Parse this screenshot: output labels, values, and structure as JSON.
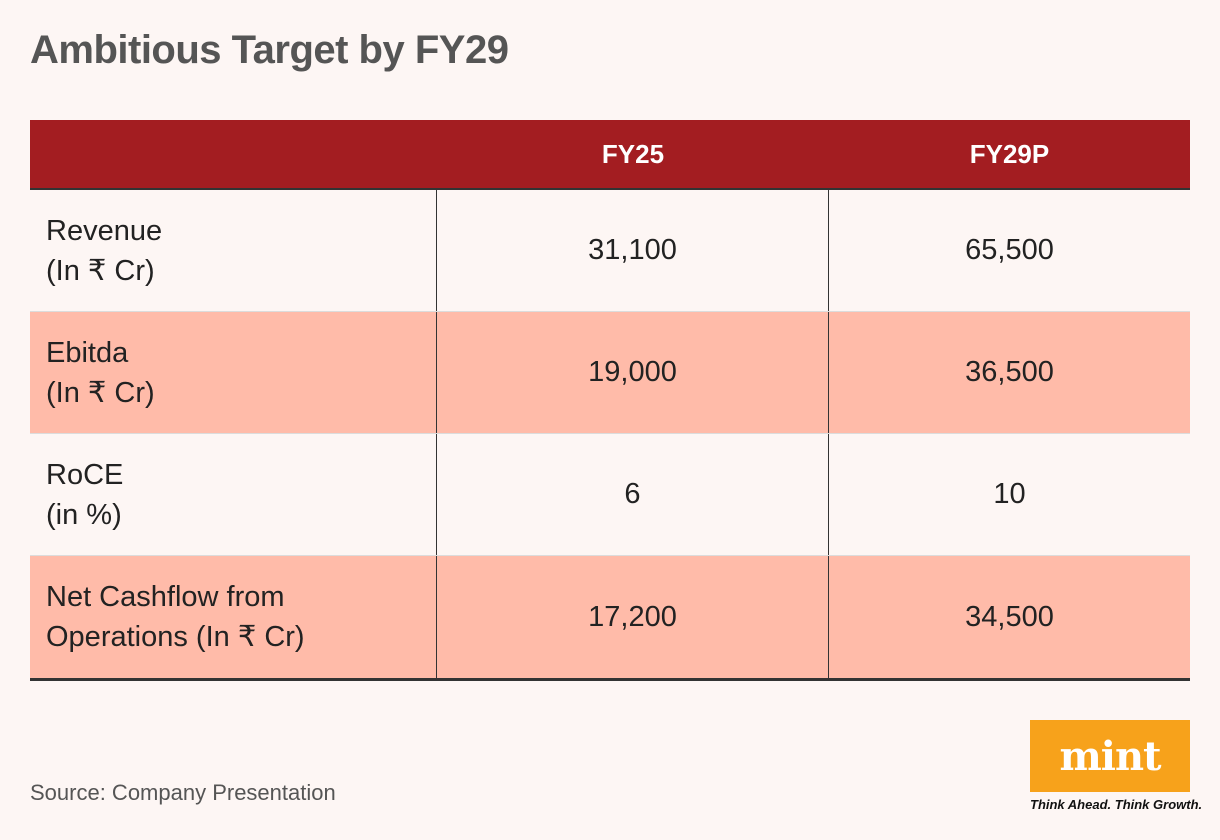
{
  "title": "Ambitious Target by FY29",
  "chart_data": {
    "type": "table",
    "columns": [
      "",
      "FY25",
      "FY29P"
    ],
    "rows": [
      {
        "label_line1": "Revenue",
        "label_line2": "(In ₹ Cr)",
        "fy25": "31,100",
        "fy29p": "65,500"
      },
      {
        "label_line1": "Ebitda",
        "label_line2": "(In ₹ Cr)",
        "fy25": "19,000",
        "fy29p": "36,500"
      },
      {
        "label_line1": "RoCE",
        "label_line2": "(in %)",
        "fy25": "6",
        "fy29p": "10"
      },
      {
        "label_line1": "Net Cashflow from",
        "label_line2": "Operations (In ₹ Cr)",
        "fy25": "17,200",
        "fy29p": "34,500"
      }
    ]
  },
  "source": "Source: Company Presentation",
  "logo": {
    "text": "mint",
    "tagline": "Think Ahead. Think Growth."
  },
  "colors": {
    "header": "#a31d21",
    "shaded_row": "#ffbba9",
    "logo": "#f7a21b",
    "background": "#fdf6f4"
  }
}
